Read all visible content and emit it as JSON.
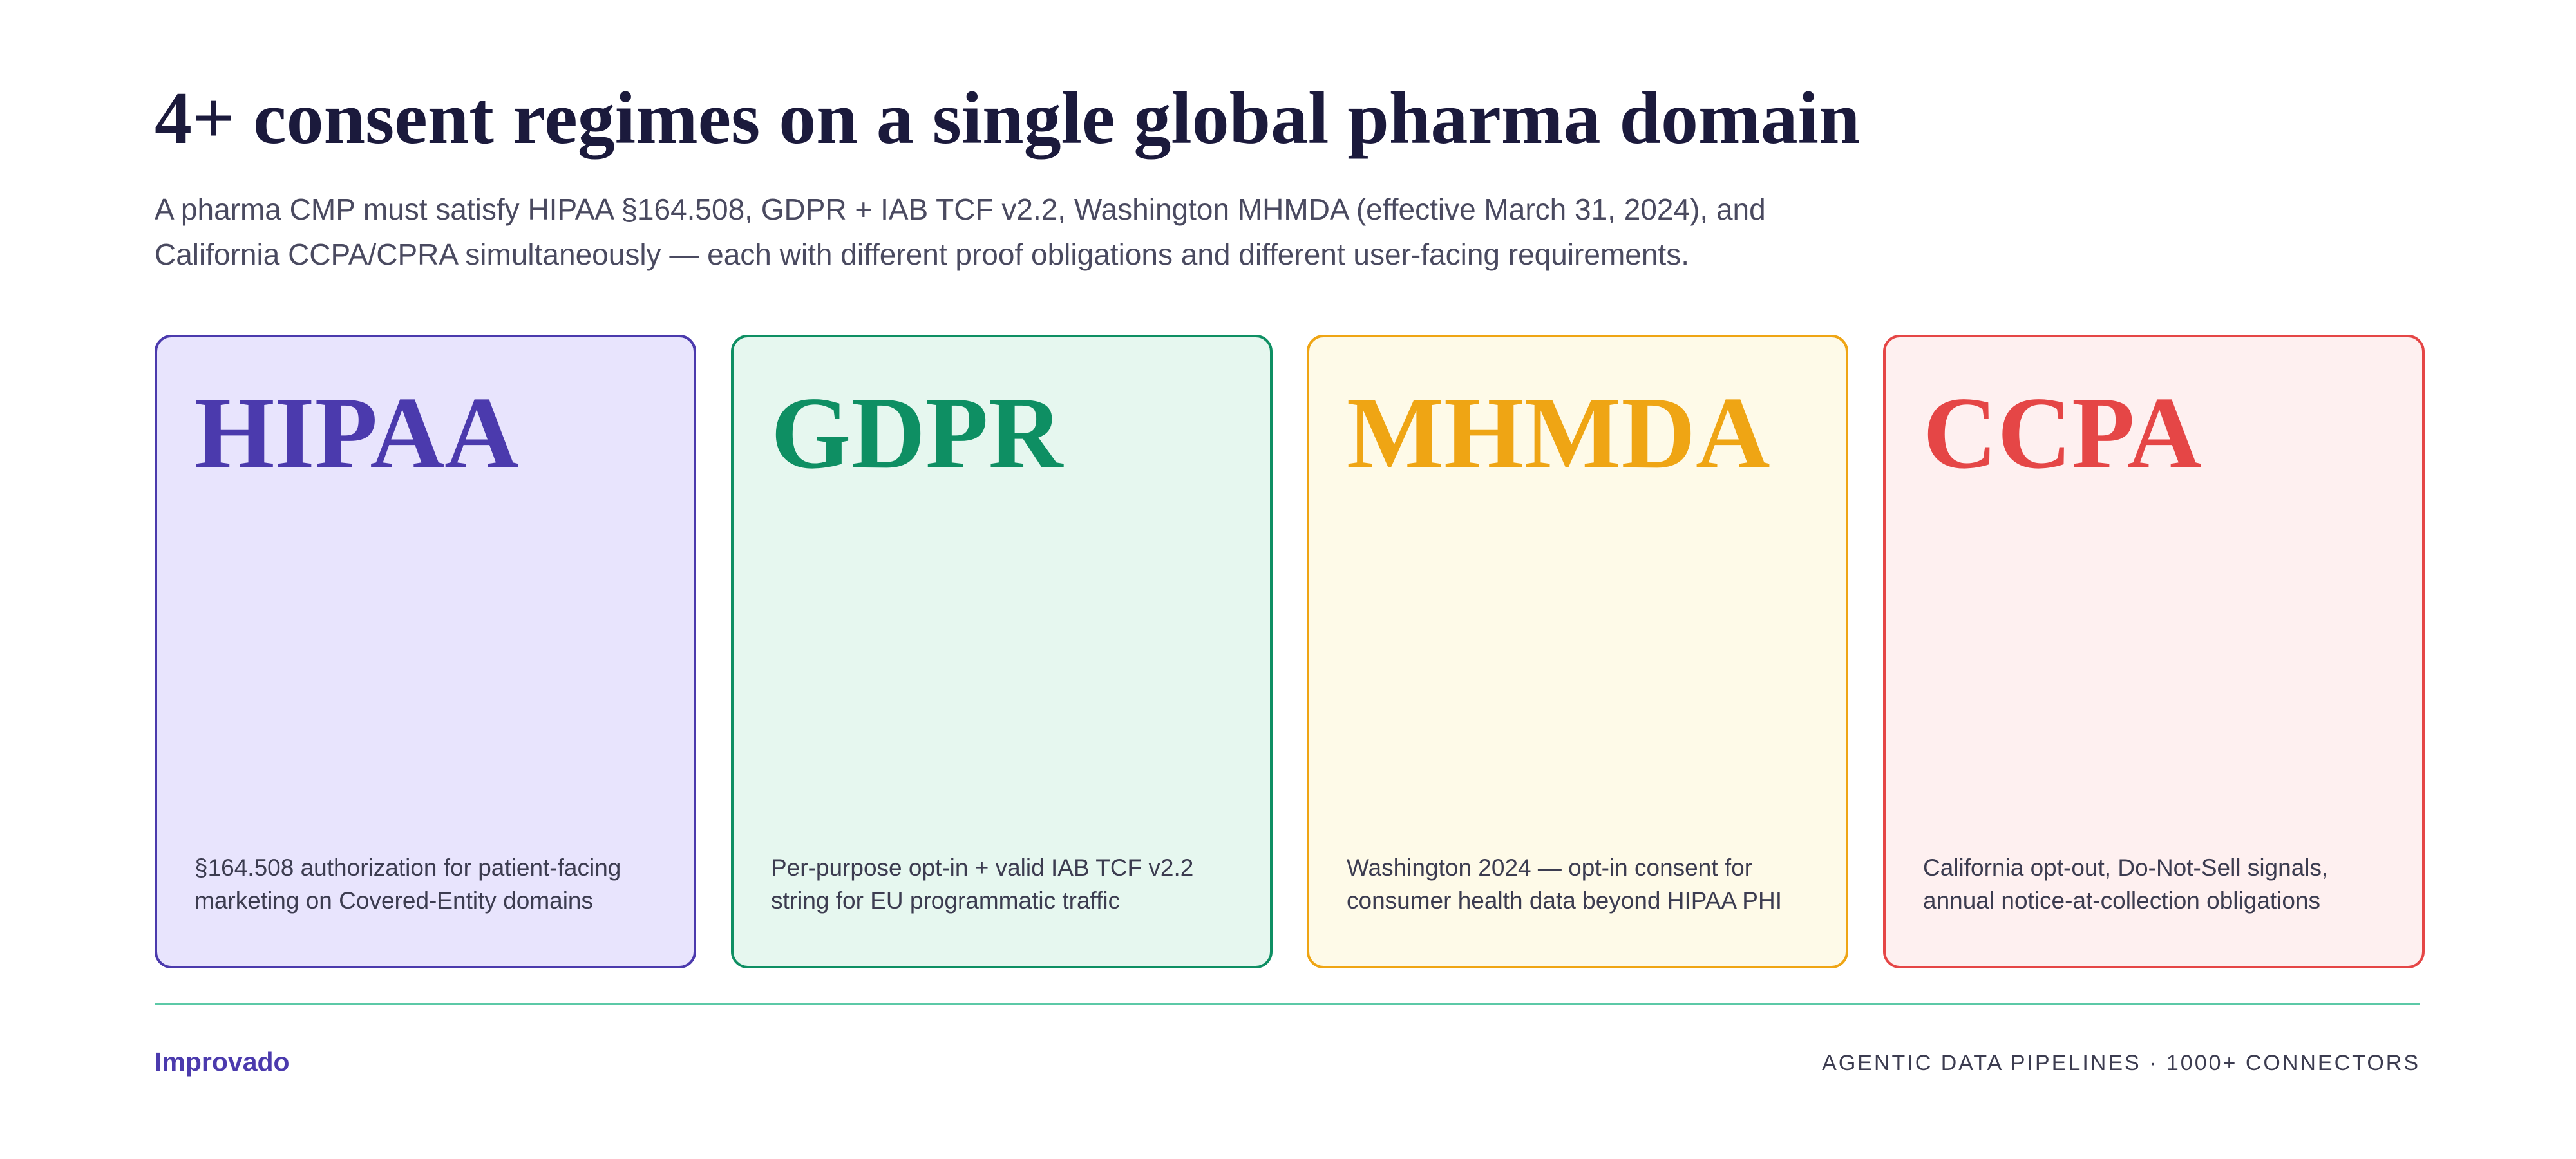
{
  "header": {
    "title": "4+ consent regimes on a single global pharma domain",
    "subtitle": "A pharma CMP must satisfy HIPAA §164.508, GDPR + IAB TCF v2.2, Washington MHMDA (effective March 31, 2024), and California CCPA/CPRA simultaneously — each with different proof obligations and different user-facing requirements."
  },
  "cards": [
    {
      "name": "HIPAA",
      "description": "§164.508 authorization for patient-facing marketing on Covered-Entity domains"
    },
    {
      "name": "GDPR",
      "description": "Per-purpose opt-in + valid IAB TCF v2.2 string for EU programmatic traffic"
    },
    {
      "name": "MHMDA",
      "description": "Washington 2024 — opt-in consent for consumer health data beyond HIPAA PHI"
    },
    {
      "name": "CCPA",
      "description": "California opt-out, Do-Not-Sell signals, annual notice-at-collection obligations"
    }
  ],
  "footer": {
    "brand": "Improvado",
    "tagline": "AGENTIC DATA PIPELINES · 1000+ CONNECTORS"
  }
}
